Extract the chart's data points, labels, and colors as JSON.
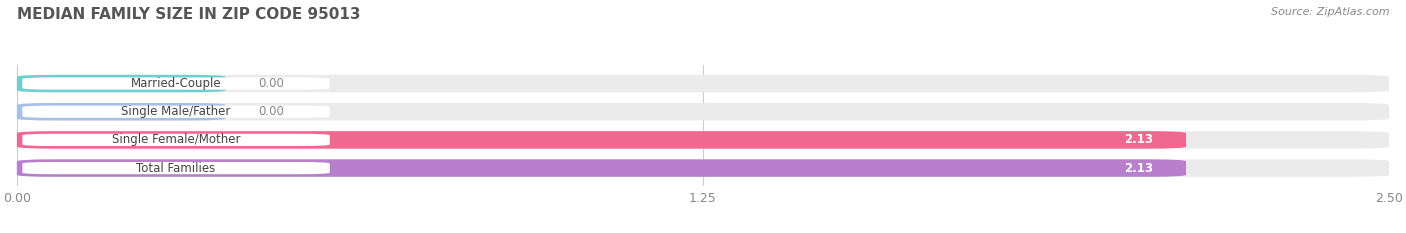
{
  "title": "MEDIAN FAMILY SIZE IN ZIP CODE 95013",
  "source": "Source: ZipAtlas.com",
  "categories": [
    "Married-Couple",
    "Single Male/Father",
    "Single Female/Mother",
    "Total Families"
  ],
  "values": [
    0.0,
    0.0,
    2.13,
    2.13
  ],
  "bar_colors": [
    "#6dcfcf",
    "#a8c0e8",
    "#f06890",
    "#b880cc"
  ],
  "background_color": "#ffffff",
  "bar_bg_color": "#ebebeb",
  "xlim": [
    0,
    2.5
  ],
  "xticks": [
    0.0,
    1.25,
    2.5
  ],
  "bar_height": 0.62,
  "label_box_color": "#ffffff",
  "grid_color": "#cccccc",
  "value_color_outside": "#888888",
  "value_color_inside": "#ffffff",
  "title_color": "#555555",
  "source_color": "#888888",
  "tick_color": "#888888"
}
